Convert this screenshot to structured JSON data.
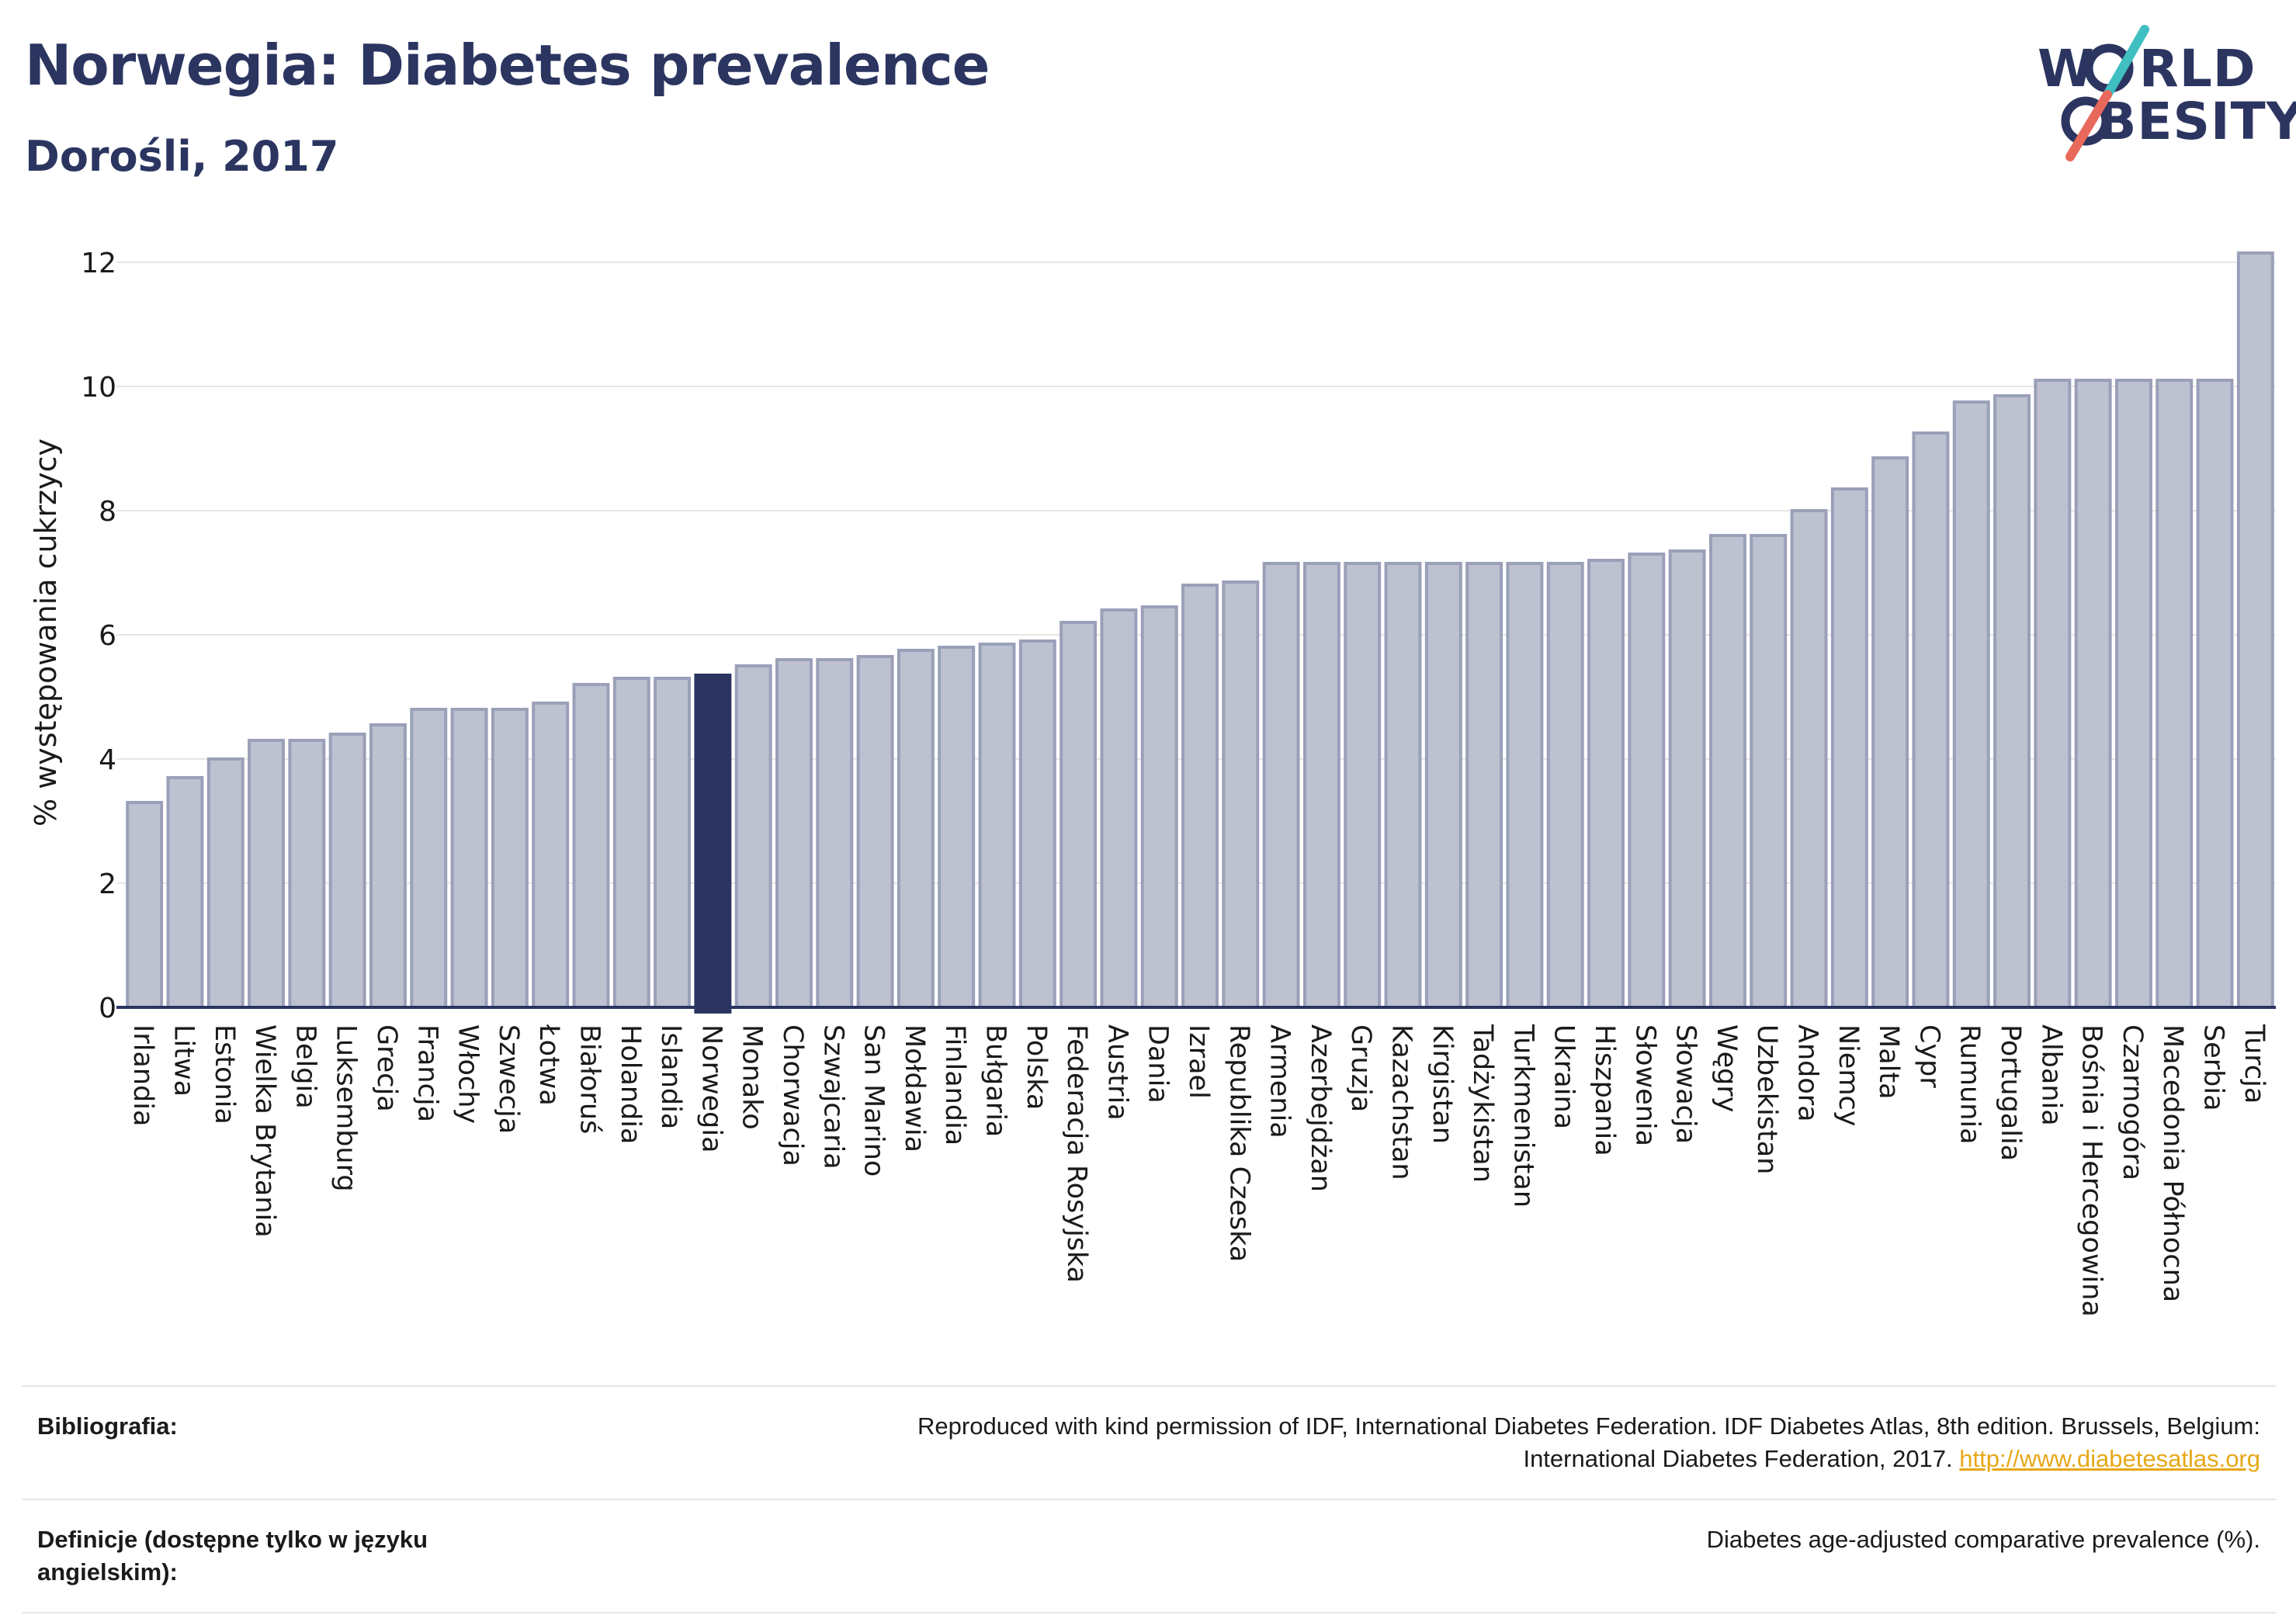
{
  "header": {
    "title": "Norwegia: Diabetes prevalence",
    "subtitle": "Dorośli, 2017"
  },
  "logo": {
    "line1": "WORLD",
    "line2": "OBESITY"
  },
  "footer": {
    "bibliography_label": "Bibliografia:",
    "bibliography_text_1": "Reproduced with kind permission of IDF, International Diabetes Federation. IDF Diabetes Atlas, 8th edition. Brussels, Belgium:",
    "bibliography_text_2": "International Diabetes Federation, 2017.",
    "bibliography_link": "http://www.diabetesatlas.org",
    "definitions_label": "Definicje (dostępne tylko w języku angielskim):",
    "definitions_text": "Diabetes age-adjusted comparative prevalence (%)."
  },
  "colors": {
    "bar": "#bdc1d0",
    "bar_stroke": "#9aa0b8",
    "highlight": "#2b3560",
    "axis": "#2b3560",
    "grid": "#e6e6e6",
    "text": "#2b3560"
  },
  "chart_data": {
    "type": "bar",
    "ylabel": "% występowania cukrzycy",
    "ylim": [
      0,
      12
    ],
    "yticks": [
      0,
      2,
      4,
      6,
      8,
      10,
      12
    ],
    "grid": true,
    "highlight": "Norwegia",
    "categories": [
      "Irlandia",
      "Litwa",
      "Estonia",
      "Wielka Brytania",
      "Belgia",
      "Luksemburg",
      "Grecja",
      "Francja",
      "Włochy",
      "Szwecja",
      "Łotwa",
      "Białoruś",
      "Holandia",
      "Islandia",
      "Norwegia",
      "Monako",
      "Chorwacja",
      "Szwajcaria",
      "San Marino",
      "Mołdawia",
      "Finlandia",
      "Bułgaria",
      "Polska",
      "Federacja Rosyjska",
      "Austria",
      "Dania",
      "Izrael",
      "Republika Czeska",
      "Armenia",
      "Azerbejdżan",
      "Gruzja",
      "Kazachstan",
      "Kirgistan",
      "Tadżykistan",
      "Turkmenistan",
      "Ukraina",
      "Hiszpania",
      "Słowenia",
      "Słowacja",
      "Węgry",
      "Uzbekistan",
      "Andora",
      "Niemcy",
      "Malta",
      "Cypr",
      "Rumunia",
      "Portugalia",
      "Albania",
      "Bośnia i Hercegowina",
      "Czarnogóra",
      "Macedonia Północna",
      "Serbia",
      "Turcja"
    ],
    "values": [
      3.3,
      3.7,
      4.0,
      4.3,
      4.3,
      4.4,
      4.55,
      4.8,
      4.8,
      4.8,
      4.9,
      5.2,
      5.3,
      5.3,
      5.35,
      5.5,
      5.6,
      5.6,
      5.65,
      5.75,
      5.8,
      5.85,
      5.9,
      6.2,
      6.4,
      6.45,
      6.8,
      6.85,
      7.15,
      7.15,
      7.15,
      7.15,
      7.15,
      7.15,
      7.15,
      7.15,
      7.2,
      7.3,
      7.35,
      7.6,
      7.6,
      8.0,
      8.35,
      8.85,
      9.25,
      9.75,
      9.85,
      10.1,
      10.1,
      10.1,
      10.1,
      10.1,
      12.15
    ]
  }
}
